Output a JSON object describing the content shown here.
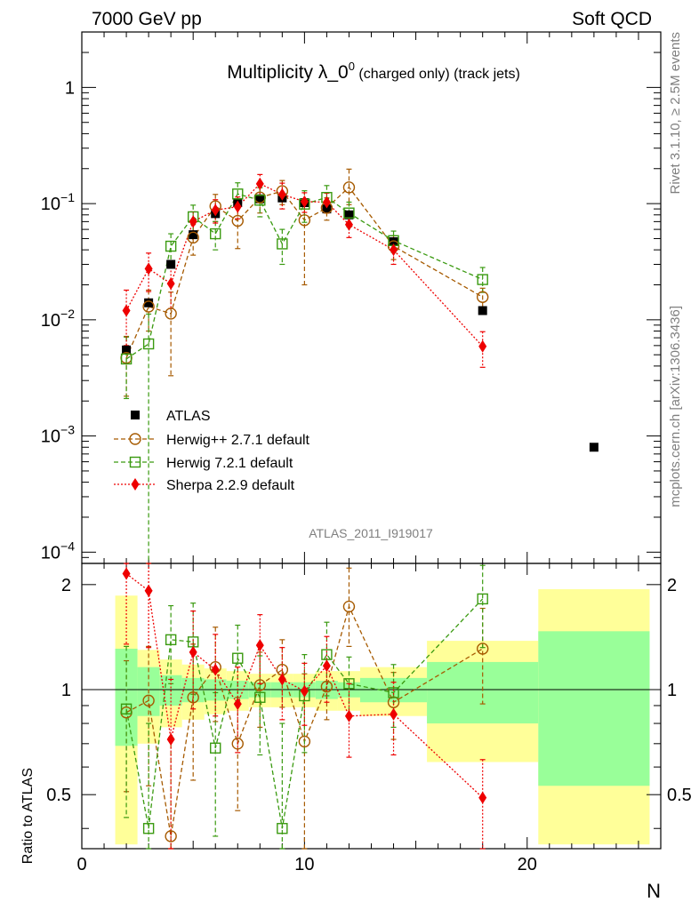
{
  "header": {
    "left": "7000 GeV pp",
    "right": "Soft QCD"
  },
  "side_labels": {
    "rivet": "Rivet 3.1.10, ≥ 2.5M events",
    "mcplots": "mcplots.cern.ch [arXiv:1306.3436]"
  },
  "chart_data": {
    "type": "scatter",
    "title": "Multiplicity λ_0",
    "title_sup": "0",
    "title_suffix": " (charged only) (track jets)",
    "analysis_label": "ATLAS_2011_I919017",
    "xlabel": "N",
    "ylabel_ratio": "Ratio to ATLAS",
    "xlim": [
      0,
      26
    ],
    "ylim_main": [
      8e-05,
      3
    ],
    "ylim_ratio": [
      0.35,
      2.3
    ],
    "x_ticks": [
      0,
      10,
      20
    ],
    "y_ticks_main": [
      {
        "v": 0.0001,
        "base": "10",
        "exp": "−4"
      },
      {
        "v": 0.001,
        "base": "10",
        "exp": "−3"
      },
      {
        "v": 0.01,
        "base": "10",
        "exp": "−2"
      },
      {
        "v": 0.1,
        "base": "10",
        "exp": "−1"
      },
      {
        "v": 1,
        "base": "1",
        "exp": ""
      }
    ],
    "y_ticks_ratio": [
      {
        "v": 0.5,
        "label": "0.5"
      },
      {
        "v": 1,
        "label": "1"
      },
      {
        "v": 2,
        "label": "2"
      }
    ],
    "legend": [
      {
        "name": "ATLAS",
        "color": "#000000",
        "marker": "square-filled",
        "line": "none"
      },
      {
        "name": "Herwig++ 2.7.1 default",
        "color": "#a65a00",
        "marker": "circle-open",
        "line": "dashed"
      },
      {
        "name": "Herwig 7.2.1 default",
        "color": "#3a9a10",
        "marker": "square-open",
        "line": "dashed"
      },
      {
        "name": "Sherpa 2.2.9 default",
        "color": "#ee0000",
        "marker": "diamond-filled",
        "line": "dotted"
      }
    ],
    "data": {
      "name": "ATLAS",
      "x": [
        2,
        3,
        4,
        5,
        6,
        7,
        8,
        9,
        10,
        11,
        12,
        14,
        18,
        23
      ],
      "y": [
        0.0055,
        0.014,
        0.03,
        0.054,
        0.082,
        0.102,
        0.11,
        0.112,
        0.102,
        0.09,
        0.08,
        0.047,
        0.012,
        0.0008
      ]
    },
    "bands": [
      {
        "x0": 1.5,
        "x1": 2.5,
        "g": [
          0.69,
          1.31
        ],
        "y": [
          0.36,
          1.86
        ]
      },
      {
        "x0": 2.5,
        "x1": 3.5,
        "g": [
          0.84,
          1.16
        ],
        "y": [
          0.7,
          1.3
        ]
      },
      {
        "x0": 3.5,
        "x1": 4.5,
        "g": [
          0.9,
          1.1
        ],
        "y": [
          0.78,
          1.22
        ]
      },
      {
        "x0": 4.5,
        "x1": 5.5,
        "g": [
          0.92,
          1.08
        ],
        "y": [
          0.82,
          1.18
        ]
      },
      {
        "x0": 5.5,
        "x1": 6.5,
        "g": [
          0.93,
          1.07
        ],
        "y": [
          0.85,
          1.15
        ]
      },
      {
        "x0": 6.5,
        "x1": 7.5,
        "g": [
          0.94,
          1.06
        ],
        "y": [
          0.87,
          1.13
        ]
      },
      {
        "x0": 7.5,
        "x1": 8.5,
        "g": [
          0.95,
          1.05
        ],
        "y": [
          0.89,
          1.11
        ]
      },
      {
        "x0": 8.5,
        "x1": 9.5,
        "g": [
          0.95,
          1.05
        ],
        "y": [
          0.89,
          1.11
        ]
      },
      {
        "x0": 9.5,
        "x1": 10.5,
        "g": [
          0.95,
          1.05
        ],
        "y": [
          0.89,
          1.11
        ]
      },
      {
        "x0": 10.5,
        "x1": 11.5,
        "g": [
          0.94,
          1.06
        ],
        "y": [
          0.87,
          1.13
        ]
      },
      {
        "x0": 11.5,
        "x1": 12.5,
        "g": [
          0.95,
          1.05
        ],
        "y": [
          0.87,
          1.13
        ]
      },
      {
        "x0": 12.5,
        "x1": 15.5,
        "g": [
          0.92,
          1.08
        ],
        "y": [
          0.84,
          1.16
        ]
      },
      {
        "x0": 15.5,
        "x1": 20.5,
        "g": [
          0.8,
          1.2
        ],
        "y": [
          0.62,
          1.38
        ]
      },
      {
        "x0": 20.5,
        "x1": 25.5,
        "g": [
          0.53,
          1.47
        ],
        "y": [
          0.36,
          1.94
        ]
      }
    ],
    "series": [
      {
        "name": "Herwig++ 2.7.1 default",
        "x": [
          2,
          3,
          4,
          5,
          6,
          7,
          8,
          9,
          10,
          11,
          12,
          14,
          18
        ],
        "y": [
          0.0047,
          0.013,
          0.0113,
          0.051,
          0.095,
          0.071,
          0.113,
          0.128,
          0.072,
          0.092,
          0.138,
          0.043,
          0.0157
        ],
        "err_lo": [
          0.0025,
          0.005,
          0.008,
          0.015,
          0.025,
          0.03,
          0.03,
          0.03,
          0.052,
          0.02,
          0.04,
          0.01,
          0.003
        ],
        "err_hi": [
          0.0025,
          0.005,
          0.006,
          0.015,
          0.025,
          0.03,
          0.03,
          0.03,
          0.03,
          0.02,
          0.06,
          0.01,
          0.003
        ],
        "ratio": [
          0.86,
          0.93,
          0.38,
          0.95,
          1.16,
          0.7,
          1.03,
          1.14,
          0.71,
          1.02,
          1.73,
          0.92,
          1.31
        ],
        "ratio_lo": [
          0.35,
          0.4,
          0.35,
          0.4,
          0.35,
          0.25,
          0.25,
          0.25,
          0.5,
          0.2,
          0.4,
          0.2,
          0.4
        ],
        "ratio_hi": [
          0.35,
          0.4,
          0.35,
          0.4,
          0.35,
          0.25,
          0.25,
          0.25,
          0.4,
          0.2,
          0.5,
          0.2,
          0.4
        ]
      },
      {
        "name": "Herwig 7.2.1 default",
        "x": [
          2,
          3,
          4,
          5,
          6,
          7,
          8,
          9,
          10,
          11,
          12,
          14,
          18
        ],
        "y": [
          0.0046,
          0.0062,
          0.043,
          0.077,
          0.055,
          0.121,
          0.107,
          0.045,
          0.099,
          0.113,
          0.083,
          0.048,
          0.0222
        ],
        "err_lo": [
          0.0025,
          0.0062,
          0.012,
          0.02,
          0.015,
          0.03,
          0.03,
          0.015,
          0.03,
          0.03,
          0.02,
          0.01,
          0.005
        ],
        "err_hi": [
          0.0025,
          0.005,
          0.012,
          0.02,
          0.015,
          0.03,
          0.03,
          0.015,
          0.03,
          0.03,
          0.02,
          0.01,
          0.006
        ],
        "ratio": [
          0.88,
          0.4,
          1.39,
          1.37,
          0.68,
          1.23,
          0.95,
          0.4,
          0.96,
          1.26,
          1.04,
          0.98,
          1.82
        ],
        "ratio_lo": [
          0.45,
          0.4,
          0.35,
          0.4,
          0.3,
          0.3,
          0.3,
          0.4,
          0.3,
          0.3,
          0.2,
          0.2,
          0.5
        ],
        "ratio_hi": [
          0.45,
          0.4,
          0.35,
          0.4,
          0.3,
          0.3,
          0.3,
          0.4,
          0.3,
          0.3,
          0.2,
          0.2,
          0.45
        ]
      },
      {
        "name": "Sherpa 2.2.9 default",
        "x": [
          2,
          3,
          4,
          5,
          6,
          7,
          8,
          9,
          10,
          11,
          12,
          14,
          18
        ],
        "y": [
          0.012,
          0.0275,
          0.0205,
          0.07,
          0.088,
          0.094,
          0.148,
          0.12,
          0.104,
          0.103,
          0.066,
          0.04,
          0.0059
        ],
        "err_lo": [
          0.006,
          0.01,
          0.008,
          0.015,
          0.02,
          0.02,
          0.03,
          0.03,
          0.02,
          0.02,
          0.015,
          0.01,
          0.002
        ],
        "err_hi": [
          0.006,
          0.01,
          0.008,
          0.015,
          0.02,
          0.02,
          0.03,
          0.03,
          0.02,
          0.02,
          0.015,
          0.01,
          0.002
        ],
        "ratio": [
          2.15,
          1.92,
          0.72,
          1.28,
          1.14,
          0.91,
          1.34,
          1.07,
          0.99,
          1.17,
          0.84,
          0.85,
          0.49
        ],
        "ratio_lo": [
          0.8,
          0.6,
          0.37,
          0.4,
          0.3,
          0.25,
          0.3,
          0.25,
          0.2,
          0.25,
          0.2,
          0.2,
          0.14
        ],
        "ratio_hi": [
          0.6,
          0.6,
          0.35,
          0.4,
          0.3,
          0.25,
          0.3,
          0.25,
          0.2,
          0.25,
          0.2,
          0.2,
          0.14
        ]
      }
    ]
  }
}
